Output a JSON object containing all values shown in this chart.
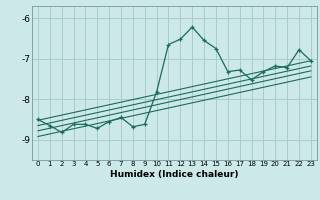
{
  "title": "",
  "xlabel": "Humidex (Indice chaleur)",
  "bg_color": "#cce8e8",
  "grid_color": "#aacccc",
  "line_color": "#1a6b5a",
  "xlim": [
    -0.5,
    23.5
  ],
  "ylim": [
    -9.5,
    -5.7
  ],
  "xticks": [
    0,
    1,
    2,
    3,
    4,
    5,
    6,
    7,
    8,
    9,
    10,
    11,
    12,
    13,
    14,
    15,
    16,
    17,
    18,
    19,
    20,
    21,
    22,
    23
  ],
  "yticks": [
    -9,
    -8,
    -7,
    -6
  ],
  "main_line_x": [
    0,
    1,
    2,
    3,
    4,
    5,
    6,
    7,
    8,
    9,
    10,
    11,
    12,
    13,
    14,
    15,
    16,
    17,
    18,
    19,
    20,
    21,
    22,
    23
  ],
  "main_line_y": [
    -8.5,
    -8.65,
    -8.82,
    -8.62,
    -8.62,
    -8.72,
    -8.55,
    -8.45,
    -8.68,
    -8.62,
    -7.82,
    -6.65,
    -6.52,
    -6.22,
    -6.55,
    -6.75,
    -7.32,
    -7.28,
    -7.52,
    -7.32,
    -7.18,
    -7.22,
    -6.78,
    -7.05
  ],
  "trend_lines": [
    {
      "x": [
        0,
        23
      ],
      "y": [
        -8.52,
        -7.05
      ]
    },
    {
      "x": [
        0,
        23
      ],
      "y": [
        -8.65,
        -7.18
      ]
    },
    {
      "x": [
        0,
        23
      ],
      "y": [
        -8.78,
        -7.3
      ]
    },
    {
      "x": [
        0,
        23
      ],
      "y": [
        -8.92,
        -7.45
      ]
    }
  ]
}
